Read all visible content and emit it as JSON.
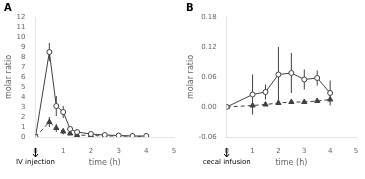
{
  "chart_data": [
    {
      "type": "line",
      "title": "A",
      "x_label": "time (h)",
      "y_label": "molar ratio",
      "annotations": [
        {
          "x": 0,
          "text": "IV injection"
        }
      ],
      "xlim": [
        0,
        5
      ],
      "xticks": [
        0,
        1,
        2,
        3,
        4,
        5
      ],
      "ylim": [
        0,
        12
      ],
      "yticks": [
        0,
        1,
        2,
        3,
        4,
        5,
        6,
        7,
        8,
        9,
        10,
        11,
        12
      ],
      "grid": false,
      "x": [
        0,
        0.5,
        0.75,
        1.0,
        1.25,
        1.5,
        2.0,
        2.5,
        3.0,
        3.5,
        4.0
      ],
      "series": [
        {
          "color": "#404040",
          "marker": "circle",
          "line_style": "solid",
          "values": [
            0,
            8.5,
            3.1,
            2.5,
            0.8,
            0.5,
            0.3,
            0.2,
            0.15,
            0.1,
            0.1
          ],
          "yerr": [
            0,
            0.9,
            1.0,
            0.6,
            0.2,
            0.2,
            0.15,
            0.1,
            0.1,
            0.05,
            0.05
          ]
        },
        {
          "color": "#404040",
          "marker": "triangle",
          "line_style": "dashed",
          "values": [
            0,
            1.5,
            0.9,
            0.55,
            0.35,
            0.2,
            0.15,
            0.1,
            0.1,
            0.08,
            0.05
          ],
          "yerr": [
            0,
            0.5,
            0.4,
            0.3,
            0.1,
            0.1,
            0.05,
            0.05,
            0.05,
            0.04,
            0.03
          ]
        }
      ]
    },
    {
      "type": "line",
      "title": "B",
      "x_label": "time (h)",
      "y_label": "molar ratio",
      "annotations": [
        {
          "x": 0,
          "text": "cecal infusion"
        }
      ],
      "xlim": [
        0,
        5
      ],
      "xticks": [
        0,
        1,
        2,
        3,
        4,
        5
      ],
      "ylim": [
        -0.06,
        0.18
      ],
      "yticks": [
        -0.06,
        {
          "value": 0,
          "label": "0.00"
        },
        0.06,
        0.12,
        0.18
      ],
      "grid": false,
      "x": [
        0,
        1.0,
        1.5,
        2.0,
        2.5,
        3.0,
        3.5,
        4.0
      ],
      "series": [
        {
          "color": "#404040",
          "marker": "circle",
          "line_style": "solid",
          "values": [
            0,
            0.025,
            0.03,
            0.065,
            0.068,
            0.055,
            0.058,
            0.028
          ],
          "yerr": [
            0,
            0.04,
            0.015,
            0.055,
            0.04,
            0.02,
            0.015,
            0.025
          ]
        },
        {
          "color": "#404040",
          "marker": "triangle",
          "line_style": "dashed",
          "values": [
            0,
            0.003,
            0.005,
            0.008,
            0.01,
            0.01,
            0.012,
            0.015
          ],
          "yerr": [
            0,
            0.002,
            0.002,
            0.003,
            0.003,
            0.003,
            0.003,
            0.004
          ]
        }
      ]
    }
  ]
}
